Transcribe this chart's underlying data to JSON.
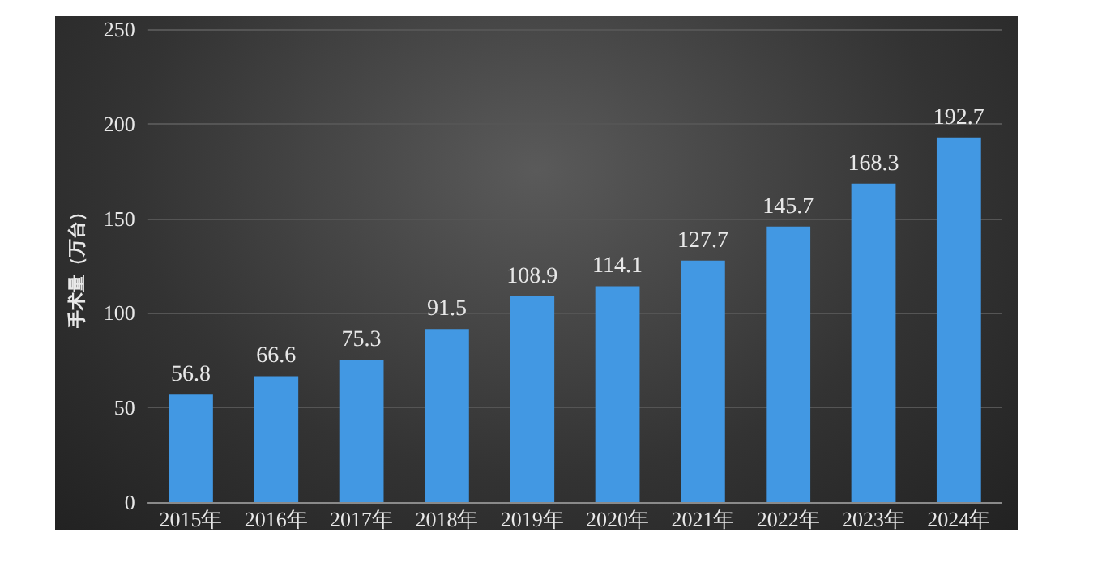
{
  "chart_data": {
    "type": "bar",
    "ylabel": "手术量（万台）",
    "categories": [
      "2015年",
      "2016年",
      "2017年",
      "2018年",
      "2019年",
      "2020年",
      "2021年",
      "2022年",
      "2023年",
      "2024年"
    ],
    "values": [
      56.8,
      66.6,
      75.3,
      91.5,
      108.9,
      114.1,
      127.7,
      145.7,
      168.3,
      192.7
    ],
    "color": "#4298e3",
    "ylim": [
      0,
      250
    ],
    "yticks": [
      0,
      50,
      100,
      150,
      200,
      250
    ],
    "grid": "y",
    "data_labels": true
  }
}
